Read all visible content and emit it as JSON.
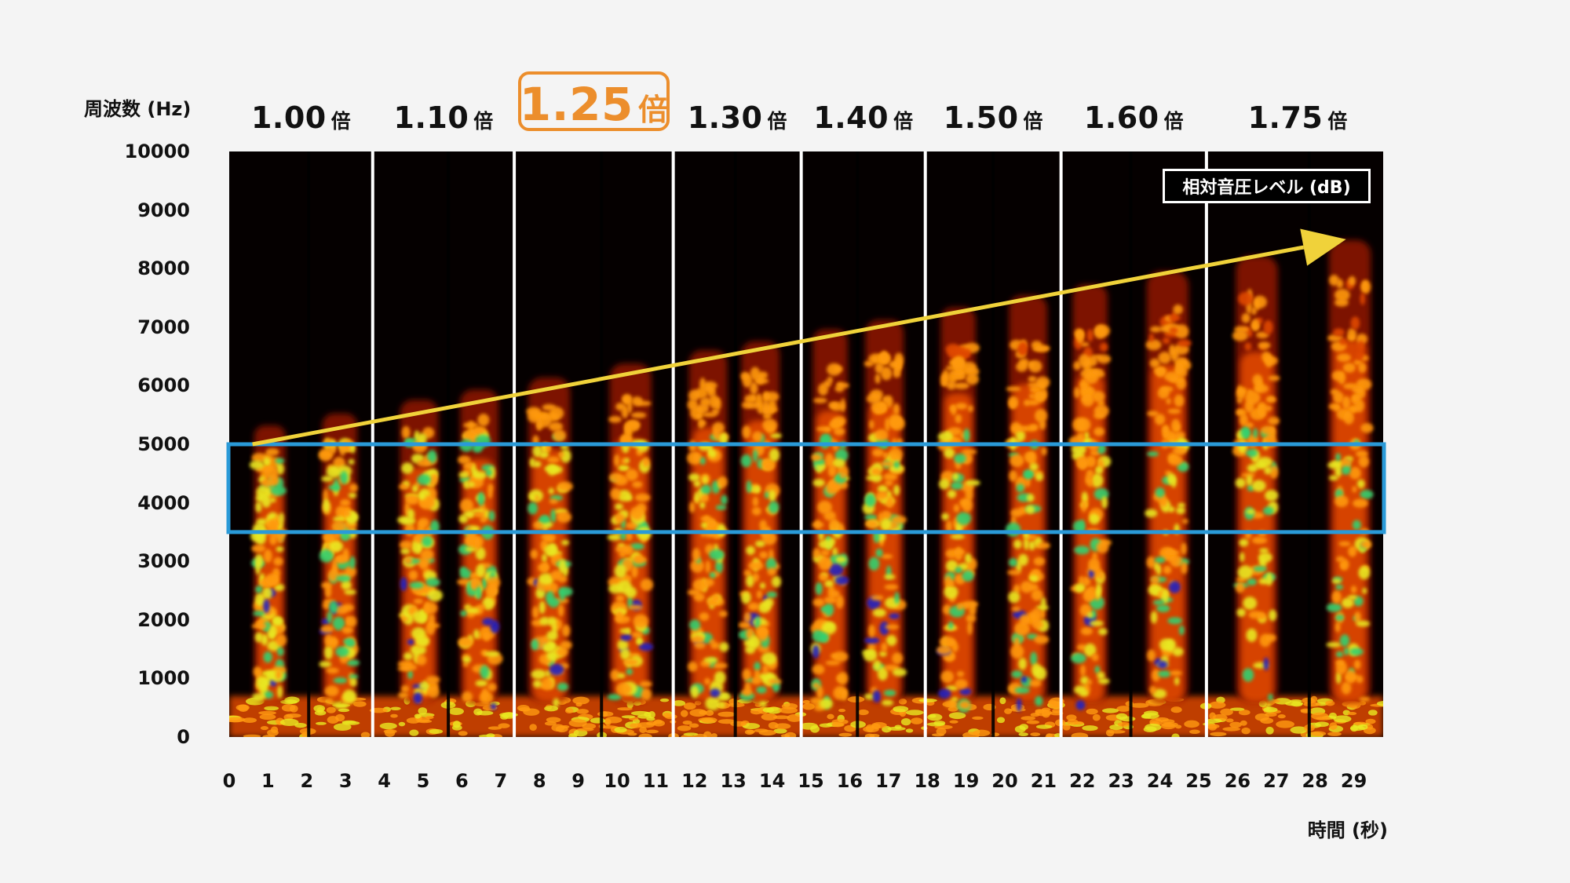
{
  "chart_data": {
    "type": "heatmap",
    "subtype": "spectrogram",
    "ylabel": "周波数 (Hz)",
    "xlabel": "時間 (秒)",
    "colorbar_label": "相対音圧レベル (dB)",
    "ylim": [
      0,
      10000
    ],
    "xlim": [
      0,
      29.9
    ],
    "y_ticks": [
      "0",
      "1000",
      "2000",
      "3000",
      "4000",
      "5000",
      "6000",
      "7000",
      "8000",
      "9000",
      "10000"
    ],
    "x_ticks": [
      "0",
      "1",
      "2",
      "3",
      "4",
      "5",
      "6",
      "7",
      "8",
      "9",
      "10",
      "11",
      "12",
      "13",
      "14",
      "15",
      "16",
      "17",
      "18",
      "19",
      "20",
      "21",
      "22",
      "23",
      "24",
      "25",
      "26",
      "27",
      "28",
      "29"
    ],
    "segments": [
      {
        "multiplier": "1.00",
        "unit": "倍",
        "start": 0.0,
        "end": 3.7,
        "highlight": false
      },
      {
        "multiplier": "1.10",
        "unit": "倍",
        "start": 3.7,
        "end": 7.35,
        "highlight": false
      },
      {
        "multiplier": "1.25",
        "unit": "倍",
        "start": 7.35,
        "end": 11.45,
        "highlight": true
      },
      {
        "multiplier": "1.30",
        "unit": "倍",
        "start": 11.45,
        "end": 14.75,
        "highlight": false
      },
      {
        "multiplier": "1.40",
        "unit": "倍",
        "start": 14.75,
        "end": 17.95,
        "highlight": false
      },
      {
        "multiplier": "1.50",
        "unit": "倍",
        "start": 17.95,
        "end": 21.45,
        "highlight": false
      },
      {
        "multiplier": "1.60",
        "unit": "倍",
        "start": 21.45,
        "end": 25.2,
        "highlight": false
      },
      {
        "multiplier": "1.75",
        "unit": "倍",
        "start": 25.2,
        "end": 29.9,
        "highlight": false
      }
    ],
    "frequency_band": [
      3500,
      5000
    ],
    "trend_arrow": {
      "from": [
        0.6,
        5000
      ],
      "to": [
        28.8,
        8500
      ]
    },
    "bursts": [
      {
        "t": 1.05,
        "w": 0.45,
        "hi": 1.0
      },
      {
        "t": 2.85,
        "w": 0.5,
        "hi": 0.9
      },
      {
        "t": 4.9,
        "w": 0.55,
        "hi": 1.0
      },
      {
        "t": 6.45,
        "w": 0.55,
        "hi": 1.0
      },
      {
        "t": 8.25,
        "w": 0.6,
        "hi": 1.0
      },
      {
        "t": 10.35,
        "w": 0.6,
        "hi": 0.95
      },
      {
        "t": 12.35,
        "w": 0.55,
        "hi": 1.0
      },
      {
        "t": 13.7,
        "w": 0.55,
        "hi": 1.0
      },
      {
        "t": 15.5,
        "w": 0.5,
        "hi": 1.0
      },
      {
        "t": 16.9,
        "w": 0.55,
        "hi": 1.0
      },
      {
        "t": 18.8,
        "w": 0.5,
        "hi": 1.0
      },
      {
        "t": 20.6,
        "w": 0.55,
        "hi": 0.95
      },
      {
        "t": 22.2,
        "w": 0.5,
        "hi": 1.0
      },
      {
        "t": 24.2,
        "w": 0.6,
        "hi": 1.0
      },
      {
        "t": 26.5,
        "w": 0.6,
        "hi": 1.0
      },
      {
        "t": 28.9,
        "w": 0.6,
        "hi": 1.0
      }
    ],
    "colors": {
      "background": "#050000",
      "low": "#8a1200",
      "mid": "#e04a00",
      "high": "#ff9a10",
      "peak": "#e8e820",
      "hot": "#30d070",
      "max": "#2020c0",
      "band_box": "#2a9ad8",
      "arrow": "#f0d23a",
      "divider": "#ffffff",
      "highlight": "#ec8e2c"
    }
  }
}
